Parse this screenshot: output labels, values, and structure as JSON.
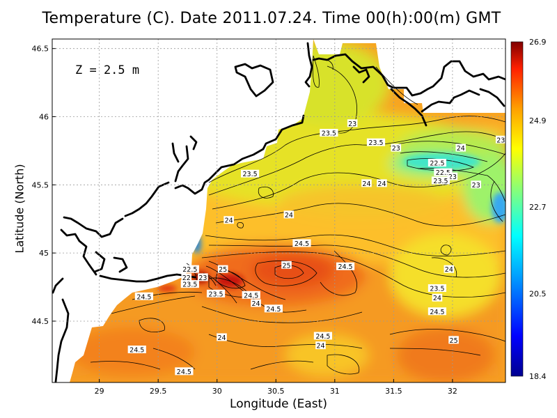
{
  "title": "Temperature (C). Date 2011.07.24. Time 00(h):00(m) GMT",
  "depth_label": "Z = 2.5 m",
  "xlabel": "Longitude (East)",
  "ylabel": "Latitude (North)",
  "chart_data": {
    "type": "heatmap",
    "title": "Temperature (C). Date 2011.07.24. Time 00(h):00(m) GMT",
    "annotation": "Z = 2.5 m",
    "xlabel": "Longitude (East)",
    "ylabel": "Latitude (North)",
    "xlim": [
      28.6,
      32.45
    ],
    "ylim": [
      44.05,
      46.57
    ],
    "x_ticks": [
      "29",
      "29.5",
      "30",
      "30.5",
      "31",
      "31.5",
      "32"
    ],
    "y_ticks": [
      "44.5",
      "45",
      "45.5",
      "46",
      "46.5"
    ],
    "colorbar": {
      "min": 18.4,
      "max": 26.9,
      "tick_labels": [
        "26.9",
        "24.9",
        "22.7",
        "20.5",
        "18.4"
      ]
    },
    "grid": true,
    "contour_labels": [
      {
        "lon": 30.95,
        "lat": 45.88,
        "value": "23.5"
      },
      {
        "lon": 31.15,
        "lat": 45.95,
        "value": "23"
      },
      {
        "lon": 31.35,
        "lat": 45.81,
        "value": "23.5"
      },
      {
        "lon": 31.52,
        "lat": 45.77,
        "value": "23"
      },
      {
        "lon": 32.07,
        "lat": 45.77,
        "value": "24"
      },
      {
        "lon": 32.41,
        "lat": 45.83,
        "value": "23"
      },
      {
        "lon": 31.87,
        "lat": 45.66,
        "value": "22.5"
      },
      {
        "lon": 31.92,
        "lat": 45.59,
        "value": "22.5"
      },
      {
        "lon": 32.0,
        "lat": 45.56,
        "value": "23"
      },
      {
        "lon": 31.9,
        "lat": 45.53,
        "value": "23.5"
      },
      {
        "lon": 32.2,
        "lat": 45.5,
        "value": "23"
      },
      {
        "lon": 30.28,
        "lat": 45.58,
        "value": "23.5"
      },
      {
        "lon": 31.27,
        "lat": 45.51,
        "value": "24"
      },
      {
        "lon": 31.4,
        "lat": 45.51,
        "value": "24"
      },
      {
        "lon": 30.61,
        "lat": 45.28,
        "value": "24"
      },
      {
        "lon": 30.1,
        "lat": 45.24,
        "value": "24"
      },
      {
        "lon": 30.72,
        "lat": 45.07,
        "value": "24.5"
      },
      {
        "lon": 31.09,
        "lat": 44.9,
        "value": "24.5"
      },
      {
        "lon": 30.59,
        "lat": 44.91,
        "value": "25"
      },
      {
        "lon": 30.05,
        "lat": 44.88,
        "value": "25"
      },
      {
        "lon": 29.77,
        "lat": 44.88,
        "value": "22.5"
      },
      {
        "lon": 29.74,
        "lat": 44.82,
        "value": "22"
      },
      {
        "lon": 29.88,
        "lat": 44.82,
        "value": "23"
      },
      {
        "lon": 29.77,
        "lat": 44.77,
        "value": "23.5"
      },
      {
        "lon": 29.99,
        "lat": 44.7,
        "value": "23.5"
      },
      {
        "lon": 30.29,
        "lat": 44.69,
        "value": "24.5"
      },
      {
        "lon": 30.33,
        "lat": 44.63,
        "value": "24"
      },
      {
        "lon": 30.48,
        "lat": 44.59,
        "value": "24.5"
      },
      {
        "lon": 29.38,
        "lat": 44.68,
        "value": "24.5"
      },
      {
        "lon": 31.97,
        "lat": 44.88,
        "value": "24"
      },
      {
        "lon": 31.87,
        "lat": 44.74,
        "value": "23.5"
      },
      {
        "lon": 31.87,
        "lat": 44.67,
        "value": "24"
      },
      {
        "lon": 31.87,
        "lat": 44.57,
        "value": "24.5"
      },
      {
        "lon": 30.9,
        "lat": 44.39,
        "value": "24.5"
      },
      {
        "lon": 30.88,
        "lat": 44.32,
        "value": "24"
      },
      {
        "lon": 30.04,
        "lat": 44.38,
        "value": "24"
      },
      {
        "lon": 29.32,
        "lat": 44.29,
        "value": "24.5"
      },
      {
        "lon": 29.72,
        "lat": 44.13,
        "value": "24.5"
      },
      {
        "lon": 32.01,
        "lat": 44.36,
        "value": "25"
      }
    ]
  },
  "colors": {
    "land": "#ffffff",
    "coastline": "#000000",
    "contour": "#000000",
    "grid": "#9a9a9a"
  }
}
